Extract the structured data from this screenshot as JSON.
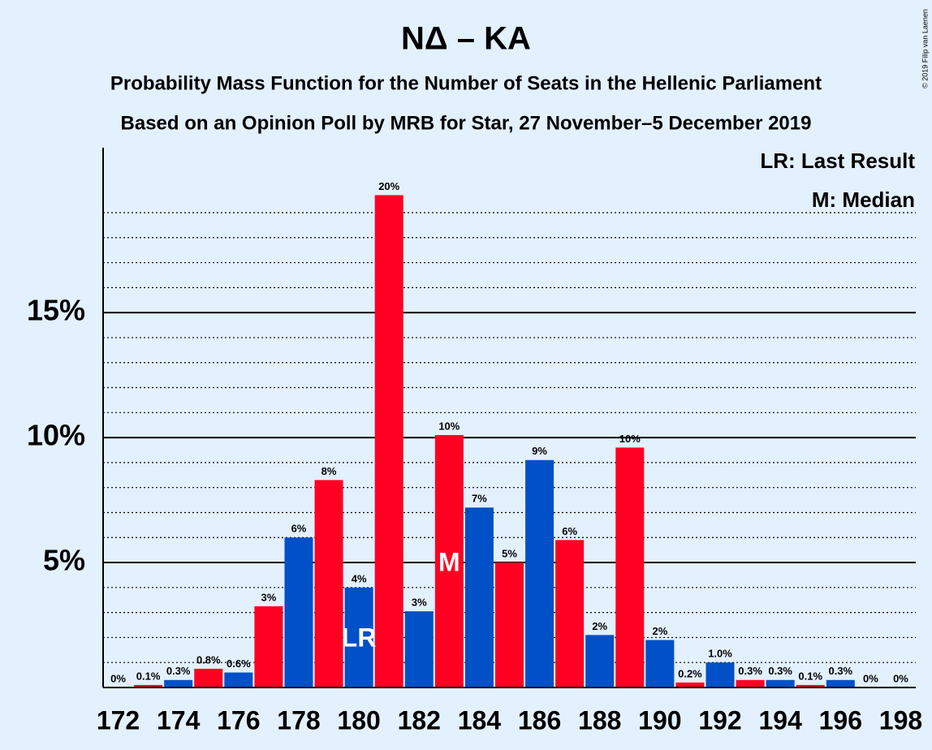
{
  "chart_data": {
    "type": "bar",
    "title": "NΔ – KA",
    "subtitle": "Probability Mass Function for the Number of Seats in the Hellenic Parliament",
    "subtitle2": "Based on an Opinion Poll by MRB for Star, 27 November–5 December 2019",
    "copyright": "© 2019 Filip van Laenen",
    "legend": [
      "LR: Last Result",
      "M: Median"
    ],
    "categories": [
      172,
      null,
      174,
      null,
      176,
      null,
      178,
      null,
      180,
      null,
      182,
      null,
      184,
      null,
      186,
      null,
      188,
      null,
      190,
      null,
      192,
      null,
      194,
      null,
      196,
      null,
      198
    ],
    "values": [
      0,
      0.1,
      0.3,
      0.75,
      0.6,
      3.25,
      6.0,
      8.3,
      4.0,
      19.7,
      3.05,
      10.1,
      7.2,
      5.0,
      9.1,
      5.9,
      2.1,
      9.6,
      1.9,
      0.2,
      1.0,
      0.3,
      0.3,
      0.1,
      0.3,
      0,
      0
    ],
    "value_labels": [
      "0%",
      "0.1%",
      "0.3%",
      "0.8%",
      "0.6%",
      "3%",
      "6%",
      "8%",
      "4%",
      "20%",
      "3%",
      "10%",
      "7%",
      "5%",
      "9%",
      "6%",
      "2%",
      "10%",
      "2%",
      "0.2%",
      "1.0%",
      "0.3%",
      "0.3%",
      "0.1%",
      "0.3%",
      "0%",
      "0%"
    ],
    "colors": [
      "#0050c8",
      "#ff0022"
    ],
    "annotations": [
      {
        "label": "LR",
        "index": 8
      },
      {
        "label": "M",
        "index": 11
      }
    ],
    "ylim": [
      0,
      21.5
    ],
    "yticks": [
      {
        "value": 5,
        "label": "5%"
      },
      {
        "value": 10,
        "label": "10%"
      },
      {
        "value": 15,
        "label": "15%"
      }
    ],
    "minor_yticks": [
      1,
      2,
      3,
      4,
      6,
      7,
      8,
      9,
      11,
      12,
      13,
      14,
      16,
      17,
      18,
      19
    ],
    "grid": true
  }
}
